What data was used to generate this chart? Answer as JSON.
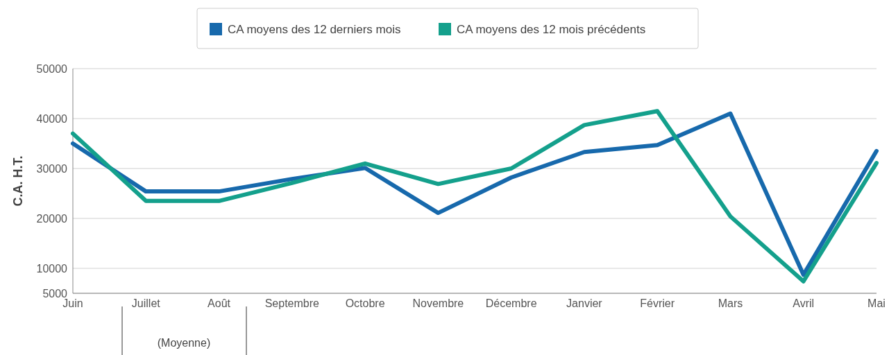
{
  "chart_data": {
    "type": "line",
    "ylabel": "C.A. H.T.",
    "categories": [
      "Juin",
      "Juillet",
      "Août",
      "Septembre",
      "Octobre",
      "Novembre",
      "Décembre",
      "Janvier",
      "Février",
      "Mars",
      "Avril",
      "Mai"
    ],
    "series": [
      {
        "name": "CA moyens des 12 derniers mois",
        "color": "#1769ac",
        "values": [
          35000,
          25400,
          25400,
          27900,
          30100,
          21100,
          28200,
          33300,
          34700,
          41000,
          8700,
          33500
        ]
      },
      {
        "name": "CA moyens des 12 mois précédents",
        "color": "#14a08c",
        "values": [
          37000,
          23500,
          23500,
          27100,
          31000,
          26900,
          30000,
          38700,
          41500,
          20400,
          7400,
          31100
        ]
      }
    ],
    "ylim": [
      5000,
      50000
    ],
    "yticks": [
      5000,
      10000,
      20000,
      30000,
      40000,
      50000
    ],
    "grid": "y",
    "legend": "top",
    "marker": "none",
    "line_style": "solid",
    "annotations": [
      "(Moyenne)"
    ]
  }
}
